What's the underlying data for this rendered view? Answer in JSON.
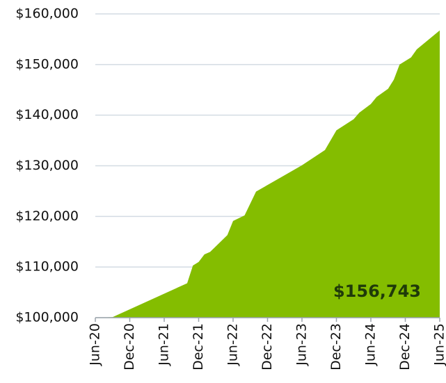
{
  "chart_data": {
    "type": "area",
    "x": [
      "Jun-20",
      "Sep-20",
      "Oct-21",
      "Nov-21",
      "Dec-21",
      "Jan-22",
      "Feb-22",
      "May-22",
      "Jun-22",
      "Aug-22",
      "Oct-22",
      "Jun-23",
      "Oct-23",
      "Dec-23",
      "Mar-24",
      "Apr-24",
      "Jun-24",
      "Jul-24",
      "Sep-24",
      "Oct-24",
      "Nov-24",
      "Jan-25",
      "Feb-25",
      "Jun-25"
    ],
    "series": [
      {
        "color": "#84bd00",
        "values": [
          100000,
          100100,
          106800,
          110300,
          111000,
          112500,
          113000,
          116300,
          119100,
          120200,
          124900,
          130100,
          133100,
          137000,
          139200,
          140500,
          142200,
          143600,
          145200,
          147000,
          150000,
          151400,
          153000,
          156743
        ]
      }
    ],
    "annotation": "$156,743",
    "ylim": [
      100000,
      160000
    ],
    "yticks": [
      {
        "value": 100000,
        "label": "$100,000"
      },
      {
        "value": 110000,
        "label": "$110,000"
      },
      {
        "value": 120000,
        "label": "$120,000"
      },
      {
        "value": 130000,
        "label": "$130,000"
      },
      {
        "value": 140000,
        "label": "$140,000"
      },
      {
        "value": 150000,
        "label": "$150,000"
      },
      {
        "value": 160000,
        "label": "$160,000"
      }
    ],
    "xticks": [
      "Jun-20",
      "Dec-20",
      "Jun-21",
      "Dec-21",
      "Jun-22",
      "Dec-22",
      "Jun-23",
      "Dec-23",
      "Jun-24",
      "Dec-24",
      "Jun-25"
    ],
    "grid": true
  }
}
